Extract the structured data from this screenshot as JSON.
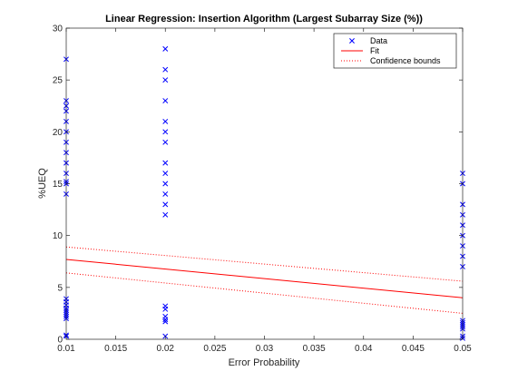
{
  "chart_data": {
    "type": "scatter",
    "title": "Linear Regression: Insertion Algorithm (Largest Subarray Size (%))",
    "xlabel": "Error Probability",
    "ylabel": "%UEQ",
    "xlim": [
      0.01,
      0.05
    ],
    "ylim": [
      0,
      30
    ],
    "x_ticks": [
      0.01,
      0.015,
      0.02,
      0.025,
      0.03,
      0.035,
      0.04,
      0.045,
      0.05
    ],
    "x_tick_labels": [
      "0.01",
      "0.015",
      "0.02",
      "0.025",
      "0.03",
      "0.035",
      "0.04",
      "0.045",
      "0.05"
    ],
    "y_ticks": [
      0,
      5,
      10,
      15,
      20,
      25,
      30
    ],
    "y_tick_labels": [
      "0",
      "5",
      "10",
      "15",
      "20",
      "25",
      "30"
    ],
    "grid": false,
    "legend_position": "top-right",
    "legend": [
      "Data",
      "Fit",
      "Confidence bounds"
    ],
    "series": [
      {
        "name": "Data",
        "kind": "markers",
        "marker": "x",
        "color": "#0000ff",
        "points": [
          [
            0.01,
            27
          ],
          [
            0.01,
            23
          ],
          [
            0.01,
            22.5
          ],
          [
            0.01,
            22
          ],
          [
            0.01,
            21
          ],
          [
            0.01,
            20
          ],
          [
            0.01,
            19
          ],
          [
            0.01,
            18
          ],
          [
            0.01,
            17
          ],
          [
            0.01,
            16
          ],
          [
            0.01,
            15.2
          ],
          [
            0.01,
            15
          ],
          [
            0.01,
            14
          ],
          [
            0.01,
            3.9
          ],
          [
            0.01,
            3.6
          ],
          [
            0.01,
            3.3
          ],
          [
            0.01,
            3.0
          ],
          [
            0.01,
            2.8
          ],
          [
            0.01,
            2.6
          ],
          [
            0.01,
            2.4
          ],
          [
            0.01,
            2.2
          ],
          [
            0.01,
            2.0
          ],
          [
            0.01,
            0.4
          ],
          [
            0.01,
            0.3
          ],
          [
            0.02,
            28
          ],
          [
            0.02,
            26
          ],
          [
            0.02,
            25
          ],
          [
            0.02,
            23
          ],
          [
            0.02,
            21
          ],
          [
            0.02,
            20
          ],
          [
            0.02,
            19
          ],
          [
            0.02,
            17
          ],
          [
            0.02,
            16
          ],
          [
            0.02,
            15
          ],
          [
            0.02,
            14
          ],
          [
            0.02,
            13
          ],
          [
            0.02,
            12
          ],
          [
            0.02,
            3.2
          ],
          [
            0.02,
            2.9
          ],
          [
            0.02,
            2.2
          ],
          [
            0.02,
            1.9
          ],
          [
            0.02,
            1.7
          ],
          [
            0.02,
            0.3
          ],
          [
            0.05,
            16
          ],
          [
            0.05,
            15
          ],
          [
            0.05,
            13
          ],
          [
            0.05,
            12
          ],
          [
            0.05,
            11
          ],
          [
            0.05,
            10
          ],
          [
            0.05,
            9
          ],
          [
            0.05,
            8
          ],
          [
            0.05,
            7
          ],
          [
            0.05,
            1.8
          ],
          [
            0.05,
            1.6
          ],
          [
            0.05,
            1.4
          ],
          [
            0.05,
            1.2
          ],
          [
            0.05,
            1.0
          ],
          [
            0.05,
            0.3
          ],
          [
            0.05,
            0.1
          ]
        ]
      },
      {
        "name": "Fit",
        "kind": "line",
        "color": "#ff0000",
        "points": [
          [
            0.01,
            7.7
          ],
          [
            0.05,
            4.0
          ]
        ]
      },
      {
        "name": "Confidence bounds",
        "kind": "dotted",
        "color": "#ff0000",
        "lines": [
          [
            [
              0.01,
              8.9
            ],
            [
              0.05,
              5.6
            ]
          ],
          [
            [
              0.01,
              6.4
            ],
            [
              0.05,
              2.5
            ]
          ]
        ]
      }
    ]
  }
}
